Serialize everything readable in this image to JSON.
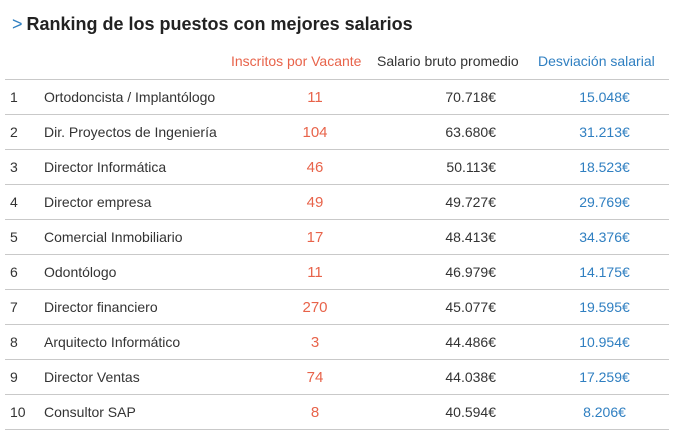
{
  "title": {
    "chevron": ">",
    "text": "Ranking de los puestos con mejores salarios"
  },
  "headers": {
    "inscritos": "Inscritos por Vacante",
    "salario": "Salario bruto promedio",
    "desviacion": "Desviación salarial"
  },
  "colors": {
    "accent_blue": "#2f7fc1",
    "accent_orange": "#e8634a"
  },
  "rows": [
    {
      "rank": "1",
      "puesto": "Ortodoncista / Implantólogo",
      "inscritos": "11",
      "salario": "70.718€",
      "desviacion": "15.048€"
    },
    {
      "rank": "2",
      "puesto": "Dir. Proyectos de Ingeniería",
      "inscritos": "104",
      "salario": "63.680€",
      "desviacion": "31.213€"
    },
    {
      "rank": "3",
      "puesto": "Director Informática",
      "inscritos": "46",
      "salario": "50.113€",
      "desviacion": "18.523€"
    },
    {
      "rank": "4",
      "puesto": "Director empresa",
      "inscritos": "49",
      "salario": "49.727€",
      "desviacion": "29.769€"
    },
    {
      "rank": "5",
      "puesto": "Comercial Inmobiliario",
      "inscritos": "17",
      "salario": "48.413€",
      "desviacion": "34.376€"
    },
    {
      "rank": "6",
      "puesto": "Odontólogo",
      "inscritos": "11",
      "salario": "46.979€",
      "desviacion": "14.175€"
    },
    {
      "rank": "7",
      "puesto": "Director financiero",
      "inscritos": "270",
      "salario": "45.077€",
      "desviacion": "19.595€"
    },
    {
      "rank": "8",
      "puesto": "Arquitecto Informático",
      "inscritos": "3",
      "salario": "44.486€",
      "desviacion": "10.954€"
    },
    {
      "rank": "9",
      "puesto": "Director Ventas",
      "inscritos": "74",
      "salario": "44.038€",
      "desviacion": "17.259€"
    },
    {
      "rank": "10",
      "puesto": "Consultor SAP",
      "inscritos": "8",
      "salario": "40.594€",
      "desviacion": "8.206€"
    }
  ]
}
